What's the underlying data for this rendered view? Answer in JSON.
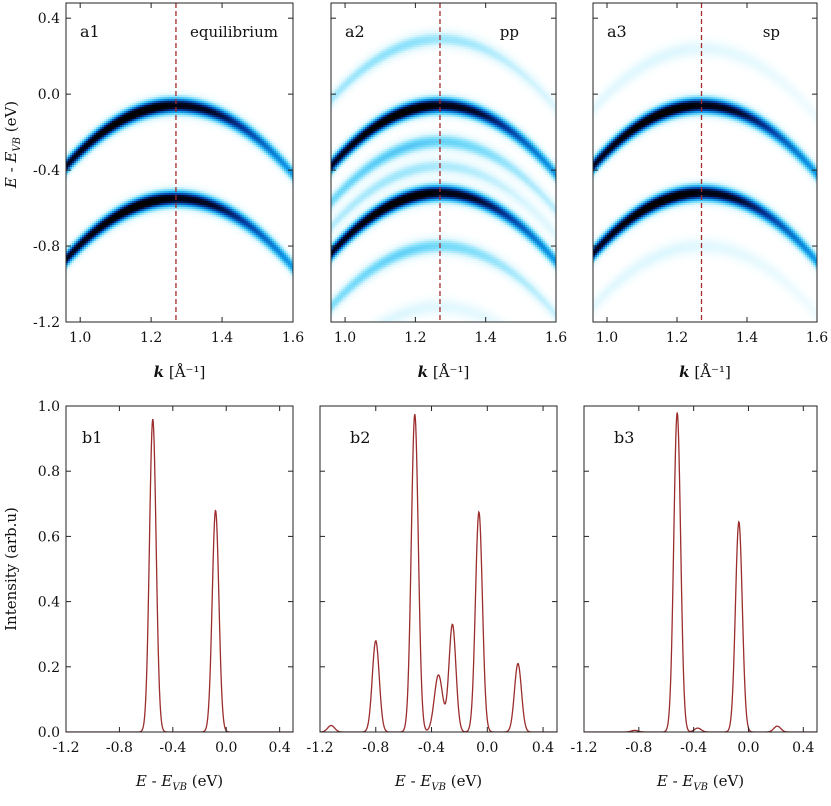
{
  "chart_data": [
    {
      "id": "a1",
      "type": "heatmap",
      "panel_label": "a1",
      "annotation": "equilibrium",
      "xlabel": "k [Å⁻¹]",
      "ylabel": "E - E_VB (eV)",
      "xlim": [
        0.96,
        1.6
      ],
      "ylim": [
        -1.2,
        0.48
      ],
      "xticks": [
        1.0,
        1.2,
        1.4,
        1.6
      ],
      "xtick_labels": [
        "1.0",
        "1.2",
        "1.4",
        "1.6"
      ],
      "yticks": [
        0.4,
        0.0,
        -0.4,
        -0.8,
        -1.2
      ],
      "ytick_labels": [
        "0.4",
        "0.0",
        "-0.4",
        "-0.8",
        "-1.2"
      ],
      "grid": false,
      "marker_line": {
        "x": 1.27,
        "color": "#a52a2a",
        "style": "dashed"
      },
      "bands": [
        {
          "k_top": 1.27,
          "e_top": -0.06,
          "curvature": 9.5,
          "weight": 1.0
        },
        {
          "k_top": 1.27,
          "e_top": -0.55,
          "curvature": 9.5,
          "weight": 1.0
        }
      ]
    },
    {
      "id": "a2",
      "type": "heatmap",
      "panel_label": "a2",
      "annotation": "pp",
      "xlabel": "k [Å⁻¹]",
      "xlim": [
        0.96,
        1.6
      ],
      "ylim": [
        -1.2,
        0.48
      ],
      "xticks": [
        1.0,
        1.2,
        1.4,
        1.6
      ],
      "xtick_labels": [
        "1.0",
        "1.2",
        "1.4",
        "1.6"
      ],
      "grid": false,
      "marker_line": {
        "x": 1.27,
        "color": "#a52a2a",
        "style": "dashed"
      },
      "bands": [
        {
          "k_top": 1.27,
          "e_top": 0.29,
          "curvature": 9.5,
          "weight": 0.25
        },
        {
          "k_top": 1.27,
          "e_top": -0.06,
          "curvature": 9.5,
          "weight": 1.0
        },
        {
          "k_top": 1.27,
          "e_top": -0.25,
          "curvature": 9.5,
          "weight": 0.35
        },
        {
          "k_top": 1.27,
          "e_top": -0.38,
          "curvature": 9.5,
          "weight": 0.22
        },
        {
          "k_top": 1.27,
          "e_top": -0.52,
          "curvature": 9.5,
          "weight": 1.0
        },
        {
          "k_top": 1.27,
          "e_top": -0.8,
          "curvature": 9.5,
          "weight": 0.32
        },
        {
          "k_top": 1.27,
          "e_top": -1.12,
          "curvature": 9.5,
          "weight": 0.12
        }
      ]
    },
    {
      "id": "a3",
      "type": "heatmap",
      "panel_label": "a3",
      "annotation": "sp",
      "xlabel": "k [Å⁻¹]",
      "xlim": [
        0.96,
        1.6
      ],
      "ylim": [
        -1.2,
        0.48
      ],
      "xticks": [
        1.0,
        1.2,
        1.4,
        1.6
      ],
      "xtick_labels": [
        "1.0",
        "1.2",
        "1.4",
        "1.6"
      ],
      "grid": false,
      "marker_line": {
        "x": 1.27,
        "color": "#a52a2a",
        "style": "dashed"
      },
      "bands": [
        {
          "k_top": 1.27,
          "e_top": 0.24,
          "curvature": 9.5,
          "weight": 0.12
        },
        {
          "k_top": 1.27,
          "e_top": -0.06,
          "curvature": 9.5,
          "weight": 1.0
        },
        {
          "k_top": 1.27,
          "e_top": -0.52,
          "curvature": 9.5,
          "weight": 1.0
        },
        {
          "k_top": 1.27,
          "e_top": -0.8,
          "curvature": 9.5,
          "weight": 0.12
        }
      ]
    },
    {
      "id": "b1",
      "type": "line",
      "panel_label": "b1",
      "xlabel": "E - E_VB (eV)",
      "ylabel": "Intensity (arb.u)",
      "xlim": [
        -1.2,
        0.5
      ],
      "ylim": [
        0.0,
        1.0
      ],
      "xticks": [
        -1.2,
        -0.8,
        -0.4,
        0.0,
        0.4
      ],
      "xtick_labels": [
        "-1.2",
        "-0.8",
        "-0.4",
        "0.0",
        "0.4"
      ],
      "yticks": [
        0.0,
        0.2,
        0.4,
        0.6,
        0.8,
        1.0
      ],
      "ytick_labels": [
        "0.0",
        "0.2",
        "0.4",
        "0.6",
        "0.8",
        "1.0"
      ],
      "grid": false,
      "line_color": "#9b2d2d",
      "peaks": [
        {
          "center": -0.55,
          "height": 0.96,
          "width": 0.025
        },
        {
          "center": -0.08,
          "height": 0.68,
          "width": 0.025
        }
      ]
    },
    {
      "id": "b2",
      "type": "line",
      "panel_label": "b2",
      "xlabel": "E - E_VB (eV)",
      "xlim": [
        -1.2,
        0.5
      ],
      "ylim": [
        0.0,
        1.0
      ],
      "xticks": [
        -1.2,
        -0.8,
        -0.4,
        0.0,
        0.4
      ],
      "xtick_labels": [
        "-1.2",
        "-0.8",
        "-0.4",
        "0.0",
        "0.4"
      ],
      "grid": false,
      "line_color": "#9b2d2d",
      "peaks": [
        {
          "center": -1.12,
          "height": 0.02,
          "width": 0.025
        },
        {
          "center": -0.8,
          "height": 0.28,
          "width": 0.025
        },
        {
          "center": -0.52,
          "height": 0.975,
          "width": 0.025
        },
        {
          "center": -0.35,
          "height": 0.175,
          "width": 0.03
        },
        {
          "center": -0.25,
          "height": 0.33,
          "width": 0.025
        },
        {
          "center": -0.06,
          "height": 0.675,
          "width": 0.025
        },
        {
          "center": 0.22,
          "height": 0.21,
          "width": 0.025
        }
      ]
    },
    {
      "id": "b3",
      "type": "line",
      "panel_label": "b3",
      "xlabel": "E - E_VB (eV)",
      "xlim": [
        -1.2,
        0.5
      ],
      "ylim": [
        0.0,
        1.0
      ],
      "xticks": [
        -1.2,
        -0.8,
        -0.4,
        0.0,
        0.4
      ],
      "xtick_labels": [
        "-1.2",
        "-0.8",
        "-0.4",
        "0.0",
        "0.4"
      ],
      "grid": false,
      "line_color": "#9b2d2d",
      "peaks": [
        {
          "center": -0.83,
          "height": 0.005,
          "width": 0.025
        },
        {
          "center": -0.52,
          "height": 0.98,
          "width": 0.025
        },
        {
          "center": -0.37,
          "height": 0.012,
          "width": 0.025
        },
        {
          "center": -0.07,
          "height": 0.645,
          "width": 0.025
        },
        {
          "center": 0.21,
          "height": 0.018,
          "width": 0.025
        }
      ]
    }
  ]
}
